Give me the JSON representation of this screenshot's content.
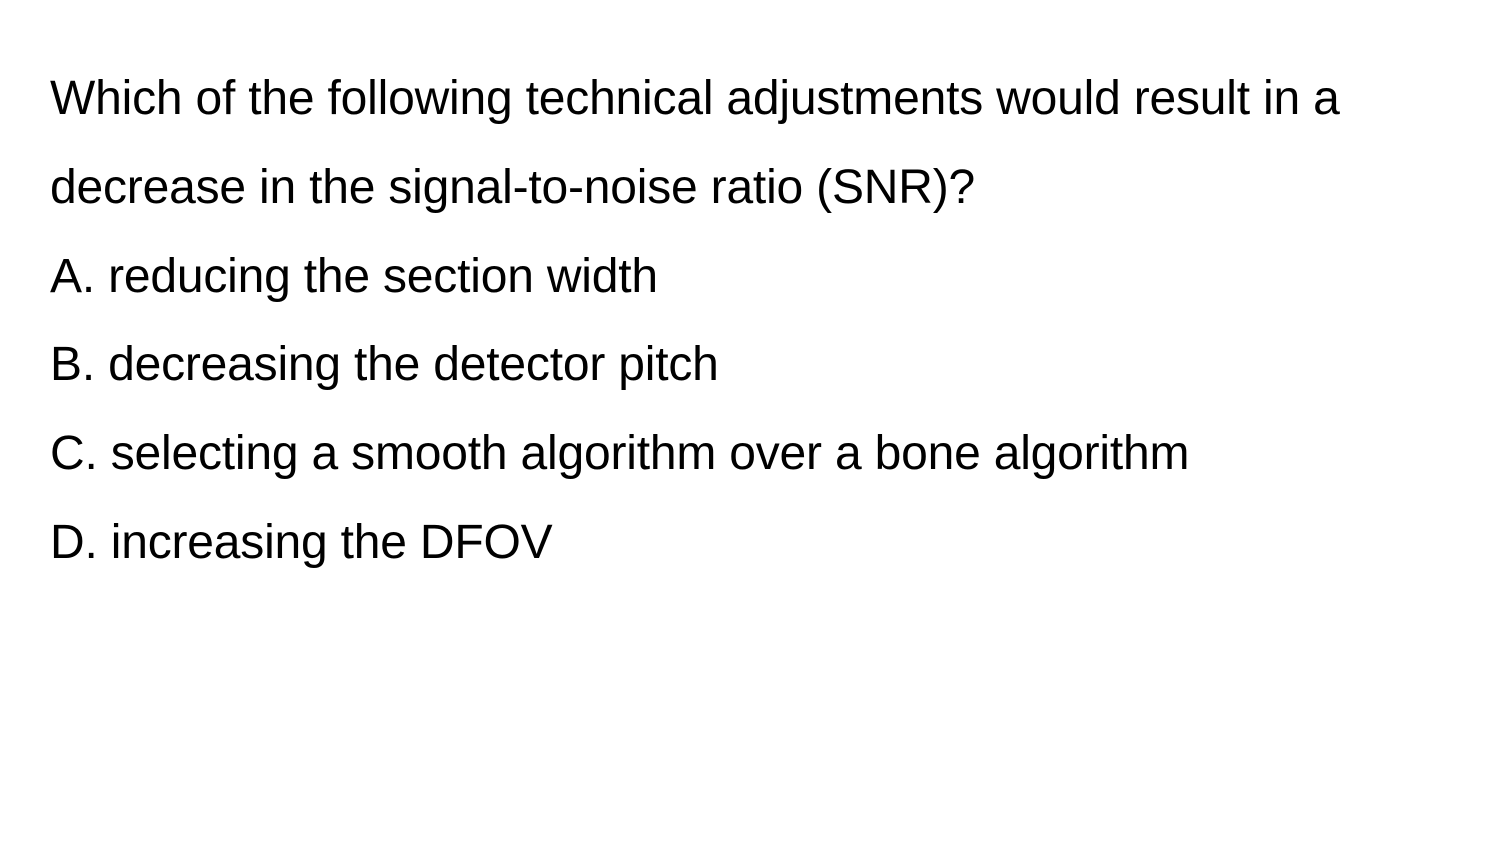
{
  "document": {
    "background_color": "#ffffff",
    "text_color": "#000000",
    "font_family": "-apple-system, Helvetica, Arial, sans-serif",
    "font_size_pt": 36,
    "line_height": 1.85,
    "question": "Which of the following technical adjustments would result in a decrease in the signal-to-noise ratio (SNR)?",
    "options": [
      {
        "letter": "A",
        "text": "A. reducing the section width"
      },
      {
        "letter": "B",
        "text": "B. decreasing the detector pitch"
      },
      {
        "letter": "C",
        "text": "C. selecting a smooth algorithm over a bone algorithm"
      },
      {
        "letter": "D",
        "text": "D. increasing the DFOV"
      }
    ]
  }
}
